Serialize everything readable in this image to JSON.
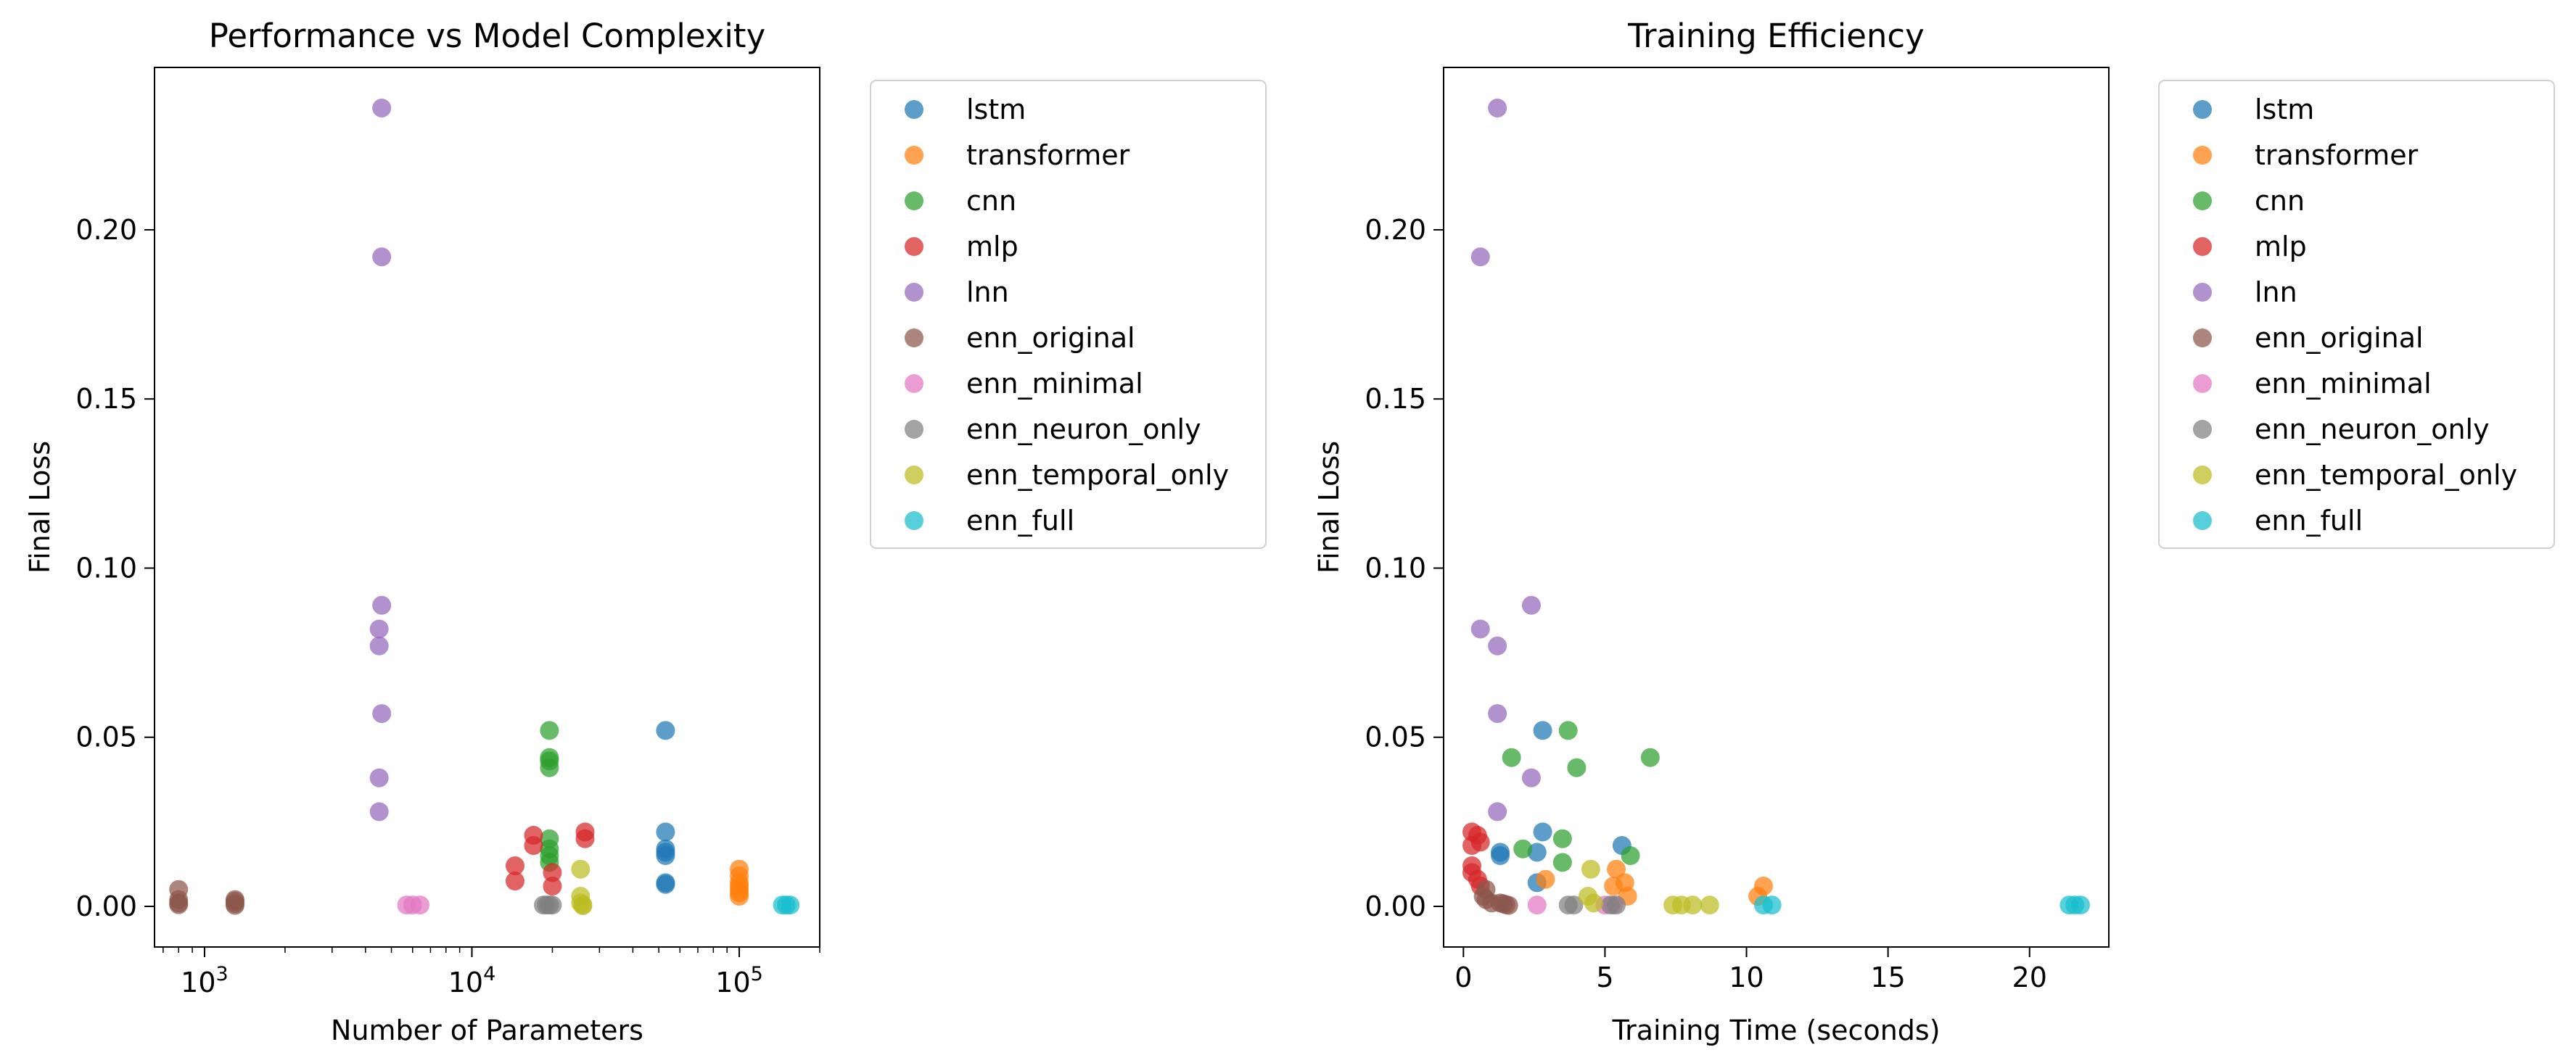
{
  "series_colors": {
    "lstm": "#1f77b4",
    "transformer": "#ff7f0e",
    "cnn": "#2ca02c",
    "mlp": "#d62728",
    "lnn": "#9467bd",
    "enn_original": "#8c564b",
    "enn_minimal": "#e377c2",
    "enn_neuron_only": "#7f7f7f",
    "enn_temporal_only": "#bcbd22",
    "enn_full": "#17becf"
  },
  "chart_data": [
    {
      "type": "scatter",
      "title": "Performance vs Model Complexity",
      "xlabel": "Number of Parameters",
      "ylabel": "Final Loss",
      "xscale": "log",
      "xlim": [
        650,
        200000
      ],
      "ylim": [
        -0.012,
        0.248
      ],
      "xticks": [
        {
          "value": 1000,
          "base": "10",
          "exp": "3"
        },
        {
          "value": 10000,
          "base": "10",
          "exp": "4"
        },
        {
          "value": 100000,
          "base": "10",
          "exp": "5"
        }
      ],
      "yticks": [
        {
          "value": 0.0,
          "label": "0.00"
        },
        {
          "value": 0.05,
          "label": "0.05"
        },
        {
          "value": 0.1,
          "label": "0.10"
        },
        {
          "value": 0.15,
          "label": "0.15"
        },
        {
          "value": 0.2,
          "label": "0.20"
        }
      ],
      "grid": false,
      "legend_position": "outside-right",
      "series": [
        {
          "name": "lstm",
          "points": [
            [
              53000,
              0.052
            ],
            [
              53000,
              0.022
            ],
            [
              53000,
              0.017
            ],
            [
              53000,
              0.015
            ],
            [
              53000,
              0.016
            ],
            [
              53000,
              0.007
            ],
            [
              53000,
              0.0065
            ]
          ]
        },
        {
          "name": "transformer",
          "points": [
            [
              100000,
              0.011
            ],
            [
              100000,
              0.009
            ],
            [
              100000,
              0.007
            ],
            [
              100000,
              0.006
            ],
            [
              100000,
              0.005
            ],
            [
              100000,
              0.004
            ],
            [
              100000,
              0.003
            ]
          ]
        },
        {
          "name": "cnn",
          "points": [
            [
              19500,
              0.052
            ],
            [
              19500,
              0.044
            ],
            [
              19500,
              0.043
            ],
            [
              19500,
              0.041
            ],
            [
              19500,
              0.02
            ],
            [
              19500,
              0.017
            ],
            [
              19500,
              0.015
            ],
            [
              19500,
              0.013
            ]
          ]
        },
        {
          "name": "mlp",
          "points": [
            [
              14500,
              0.012
            ],
            [
              14500,
              0.0075
            ],
            [
              17000,
              0.021
            ],
            [
              17000,
              0.018
            ],
            [
              20000,
              0.01
            ],
            [
              20000,
              0.006
            ],
            [
              26500,
              0.022
            ],
            [
              26500,
              0.02
            ]
          ]
        },
        {
          "name": "lnn",
          "points": [
            [
              4600,
              0.236
            ],
            [
              4600,
              0.192
            ],
            [
              4600,
              0.089
            ],
            [
              4500,
              0.082
            ],
            [
              4500,
              0.077
            ],
            [
              4600,
              0.057
            ],
            [
              4500,
              0.038
            ],
            [
              4500,
              0.028
            ]
          ]
        },
        {
          "name": "enn_original",
          "points": [
            [
              800,
              0.005
            ],
            [
              800,
              0.002
            ],
            [
              800,
              0.001
            ],
            [
              800,
              0.0005
            ],
            [
              1300,
              0.002
            ],
            [
              1300,
              0.0015
            ],
            [
              1300,
              0.0008
            ],
            [
              1300,
              0.0003
            ]
          ]
        },
        {
          "name": "enn_minimal",
          "points": [
            [
              5700,
              0.0004
            ],
            [
              6000,
              0.0004
            ],
            [
              6400,
              0.0004
            ]
          ]
        },
        {
          "name": "enn_neuron_only",
          "points": [
            [
              18500,
              0.0004
            ],
            [
              19000,
              0.0004
            ],
            [
              19500,
              0.0004
            ],
            [
              20000,
              0.0004
            ]
          ]
        },
        {
          "name": "enn_temporal_only",
          "points": [
            [
              25500,
              0.011
            ],
            [
              25500,
              0.003
            ],
            [
              25500,
              0.001
            ],
            [
              26000,
              0.0005
            ],
            [
              26000,
              0.0002
            ]
          ]
        },
        {
          "name": "enn_full",
          "points": [
            [
              145000,
              0.0004
            ],
            [
              150000,
              0.0004
            ],
            [
              155000,
              0.0004
            ]
          ]
        }
      ]
    },
    {
      "type": "scatter",
      "title": "Training Efficiency",
      "xlabel": "Training Time (seconds)",
      "ylabel": "Final Loss",
      "xscale": "linear",
      "xlim": [
        -0.7,
        22.8
      ],
      "ylim": [
        -0.012,
        0.248
      ],
      "xticks": [
        {
          "value": 0,
          "label": "0"
        },
        {
          "value": 5,
          "label": "5"
        },
        {
          "value": 10,
          "label": "10"
        },
        {
          "value": 15,
          "label": "15"
        },
        {
          "value": 20,
          "label": "20"
        }
      ],
      "yticks": [
        {
          "value": 0.0,
          "label": "0.00"
        },
        {
          "value": 0.05,
          "label": "0.05"
        },
        {
          "value": 0.1,
          "label": "0.10"
        },
        {
          "value": 0.15,
          "label": "0.15"
        },
        {
          "value": 0.2,
          "label": "0.20"
        }
      ],
      "grid": false,
      "legend_position": "outside-right",
      "series": [
        {
          "name": "lstm",
          "points": [
            [
              2.8,
              0.052
            ],
            [
              2.8,
              0.022
            ],
            [
              5.6,
              0.018
            ],
            [
              1.3,
              0.016
            ],
            [
              2.6,
              0.016
            ],
            [
              1.3,
              0.015
            ],
            [
              2.6,
              0.007
            ]
          ]
        },
        {
          "name": "transformer",
          "points": [
            [
              5.4,
              0.011
            ],
            [
              10.6,
              0.006
            ],
            [
              2.9,
              0.008
            ],
            [
              5.3,
              0.006
            ],
            [
              5.7,
              0.007
            ],
            [
              10.4,
              0.003
            ],
            [
              5.8,
              0.003
            ]
          ]
        },
        {
          "name": "cnn",
          "points": [
            [
              3.7,
              0.052
            ],
            [
              1.7,
              0.044
            ],
            [
              6.6,
              0.044
            ],
            [
              4.0,
              0.041
            ],
            [
              3.5,
              0.02
            ],
            [
              2.1,
              0.017
            ],
            [
              5.9,
              0.015
            ],
            [
              3.5,
              0.013
            ]
          ]
        },
        {
          "name": "mlp",
          "points": [
            [
              0.3,
              0.022
            ],
            [
              0.5,
              0.021
            ],
            [
              0.6,
              0.019
            ],
            [
              0.3,
              0.018
            ],
            [
              0.3,
              0.012
            ],
            [
              0.3,
              0.01
            ],
            [
              0.5,
              0.008
            ],
            [
              0.6,
              0.006
            ]
          ]
        },
        {
          "name": "lnn",
          "points": [
            [
              1.2,
              0.236
            ],
            [
              0.6,
              0.192
            ],
            [
              2.4,
              0.089
            ],
            [
              0.6,
              0.082
            ],
            [
              1.2,
              0.077
            ],
            [
              1.2,
              0.057
            ],
            [
              2.4,
              0.038
            ],
            [
              1.2,
              0.028
            ]
          ]
        },
        {
          "name": "enn_original",
          "points": [
            [
              0.8,
              0.005
            ],
            [
              0.8,
              0.002
            ],
            [
              1.3,
              0.001
            ],
            [
              1.5,
              0.0005
            ],
            [
              1.6,
              0.0003
            ],
            [
              0.7,
              0.003
            ],
            [
              1.0,
              0.001
            ],
            [
              1.4,
              0.0008
            ]
          ]
        },
        {
          "name": "enn_minimal",
          "points": [
            [
              2.6,
              0.0004
            ],
            [
              5.0,
              0.0004
            ],
            [
              5.3,
              0.0004
            ]
          ]
        },
        {
          "name": "enn_neuron_only",
          "points": [
            [
              3.7,
              0.0004
            ],
            [
              3.9,
              0.0004
            ],
            [
              5.2,
              0.0004
            ],
            [
              5.4,
              0.0004
            ]
          ]
        },
        {
          "name": "enn_temporal_only",
          "points": [
            [
              4.5,
              0.011
            ],
            [
              4.4,
              0.003
            ],
            [
              4.6,
              0.001
            ],
            [
              7.4,
              0.0004
            ],
            [
              7.7,
              0.0004
            ],
            [
              8.1,
              0.0004
            ],
            [
              8.7,
              0.0004
            ]
          ]
        },
        {
          "name": "enn_full",
          "points": [
            [
              10.6,
              0.0004
            ],
            [
              10.9,
              0.0004
            ],
            [
              21.4,
              0.0004
            ],
            [
              21.6,
              0.0004
            ],
            [
              21.8,
              0.0004
            ]
          ]
        }
      ]
    }
  ]
}
